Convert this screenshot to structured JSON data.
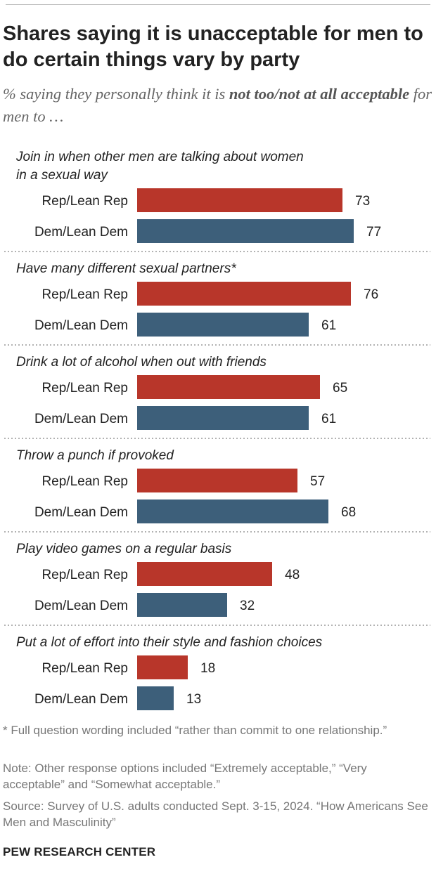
{
  "title": "Shares saying it is unacceptable for men to do certain things vary by party",
  "subtitle": {
    "prefix": "% saying they personally think it is ",
    "emphasis": "not too/not at all acceptable",
    "suffix": " for men to …"
  },
  "colors": {
    "rep": "#b8362a",
    "dem": "#3d5f7a"
  },
  "chart_data": {
    "type": "bar",
    "orientation": "horizontal",
    "grouped": true,
    "xlim": [
      0,
      100
    ],
    "grid": false,
    "legend": "none",
    "groups": [
      {
        "label_lines": [
          "Join in when other men are talking about women",
          "in a sexual way"
        ],
        "bars": [
          {
            "name": "Rep/Lean Rep",
            "value": 73
          },
          {
            "name": "Dem/Lean Dem",
            "value": 77
          }
        ]
      },
      {
        "label_lines": [
          "Have many different sexual partners*"
        ],
        "bars": [
          {
            "name": "Rep/Lean Rep",
            "value": 76
          },
          {
            "name": "Dem/Lean Dem",
            "value": 61
          }
        ]
      },
      {
        "label_lines": [
          "Drink a lot of alcohol when out with friends"
        ],
        "bars": [
          {
            "name": "Rep/Lean Rep",
            "value": 65
          },
          {
            "name": "Dem/Lean Dem",
            "value": 61
          }
        ]
      },
      {
        "label_lines": [
          "Throw a punch if provoked"
        ],
        "bars": [
          {
            "name": "Rep/Lean Rep",
            "value": 57
          },
          {
            "name": "Dem/Lean Dem",
            "value": 68
          }
        ]
      },
      {
        "label_lines": [
          "Play video games on a regular basis"
        ],
        "bars": [
          {
            "name": "Rep/Lean Rep",
            "value": 48
          },
          {
            "name": "Dem/Lean Dem",
            "value": 32
          }
        ]
      },
      {
        "label_lines": [
          "Put a lot of effort into their style and fashion choices"
        ],
        "bars": [
          {
            "name": "Rep/Lean Rep",
            "value": 18
          },
          {
            "name": "Dem/Lean Dem",
            "value": 13
          }
        ]
      }
    ]
  },
  "footnote": "* Full question wording included “rather than commit to one relationship.”",
  "note": "Note: Other response options included “Extremely acceptable,” “Very acceptable” and “Somewhat acceptable.”",
  "source": "Source: Survey of U.S. adults conducted Sept. 3-15, 2024. “How Americans See Men and Masculinity”",
  "brand": "PEW RESEARCH CENTER"
}
